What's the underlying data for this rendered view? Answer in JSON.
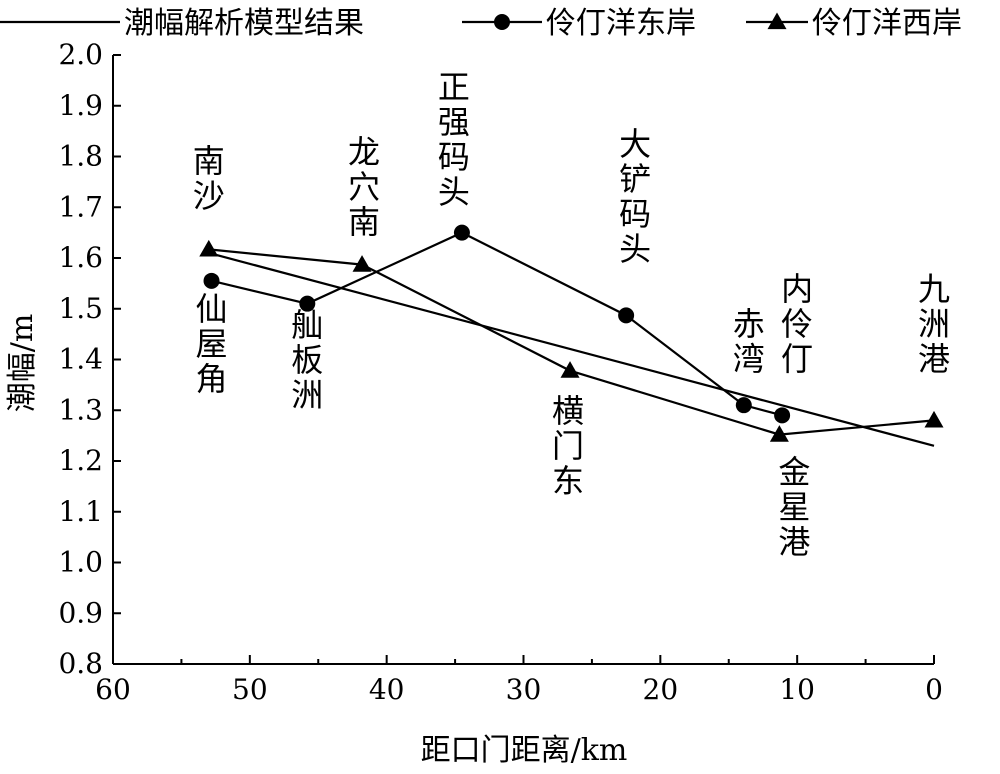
{
  "chart_data": {
    "type": "line",
    "xlabel": "距口门距离/km",
    "ylabel": "潮幅/m",
    "xlim": [
      60,
      0
    ],
    "ylim": [
      0.8,
      2.0
    ],
    "x_reversed": true,
    "x_ticks": [
      "60",
      "50",
      "40",
      "30",
      "20",
      "10",
      "0"
    ],
    "y_ticks": [
      "0.8",
      "0.9",
      "1.0",
      "1.1",
      "1.2",
      "1.3",
      "1.4",
      "1.5",
      "1.6",
      "1.7",
      "1.8",
      "1.9",
      "2.0"
    ],
    "legend_position": "top",
    "grid": false,
    "series": [
      {
        "name": "潮幅解析模型结果",
        "marker": "none",
        "points": [
          [
            53,
            1.61
          ],
          [
            0,
            1.23
          ]
        ]
      },
      {
        "name": "伶仃洋东岸",
        "marker": "circle",
        "points": [
          {
            "x": 52.8,
            "y": 1.555,
            "label": "仙屋角"
          },
          {
            "x": 45.8,
            "y": 1.51,
            "label": "舢板洲"
          },
          {
            "x": 34.5,
            "y": 1.65,
            "label": "正强码头"
          },
          {
            "x": 22.5,
            "y": 1.487,
            "label": "大铲码头"
          },
          {
            "x": 13.9,
            "y": 1.31,
            "label": "赤湾"
          },
          {
            "x": 11.1,
            "y": 1.29,
            "label": "内伶仃"
          }
        ]
      },
      {
        "name": "伶仃洋西岸",
        "marker": "triangle",
        "points": [
          {
            "x": 53,
            "y": 1.617,
            "label": "南沙"
          },
          {
            "x": 41.8,
            "y": 1.587,
            "label": "龙穴南"
          },
          {
            "x": 26.6,
            "y": 1.378,
            "label": "横门东"
          },
          {
            "x": 11.3,
            "y": 1.252,
            "label": "金星港"
          },
          {
            "x": 0,
            "y": 1.28,
            "label": "九洲港"
          }
        ]
      }
    ]
  }
}
